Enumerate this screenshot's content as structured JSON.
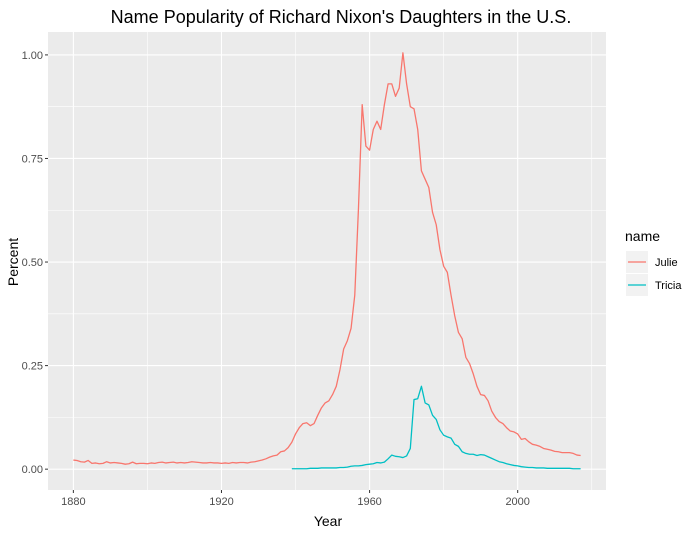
{
  "chart_data": {
    "type": "line",
    "title": "Name Popularity of Richard Nixon's Daughters in the U.S.",
    "xlabel": "Year",
    "ylabel": "Percent",
    "xlim": [
      1880,
      2017
    ],
    "ylim": [
      0,
      1.05
    ],
    "x_ticks": [
      "1880",
      "1920",
      "1960",
      "2000"
    ],
    "y_ticks": [
      "0.00",
      "0.25",
      "0.50",
      "0.75",
      "1.00"
    ],
    "grid": true,
    "legend": {
      "title": "name",
      "position": "right"
    },
    "series": [
      {
        "name": "Julie",
        "color": "#F8766D",
        "x": [
          1880,
          1881,
          1882,
          1883,
          1884,
          1885,
          1886,
          1887,
          1888,
          1889,
          1890,
          1891,
          1892,
          1893,
          1894,
          1895,
          1896,
          1897,
          1898,
          1899,
          1900,
          1901,
          1902,
          1903,
          1904,
          1905,
          1906,
          1907,
          1908,
          1909,
          1910,
          1911,
          1912,
          1913,
          1914,
          1915,
          1916,
          1917,
          1918,
          1919,
          1920,
          1921,
          1922,
          1923,
          1924,
          1925,
          1926,
          1927,
          1928,
          1929,
          1930,
          1931,
          1932,
          1933,
          1934,
          1935,
          1936,
          1937,
          1938,
          1939,
          1940,
          1941,
          1942,
          1943,
          1944,
          1945,
          1946,
          1947,
          1948,
          1949,
          1950,
          1951,
          1952,
          1953,
          1954,
          1955,
          1956,
          1957,
          1958,
          1959,
          1960,
          1961,
          1962,
          1963,
          1964,
          1965,
          1966,
          1967,
          1968,
          1969,
          1970,
          1971,
          1972,
          1973,
          1974,
          1975,
          1976,
          1977,
          1978,
          1979,
          1980,
          1981,
          1982,
          1983,
          1984,
          1985,
          1986,
          1987,
          1988,
          1989,
          1990,
          1991,
          1992,
          1993,
          1994,
          1995,
          1996,
          1997,
          1998,
          1999,
          2000,
          2001,
          2002,
          2003,
          2004,
          2005,
          2006,
          2007,
          2008,
          2009,
          2010,
          2011,
          2012,
          2013,
          2014,
          2015,
          2016,
          2017
        ],
        "values": [
          0.022,
          0.021,
          0.018,
          0.017,
          0.021,
          0.014,
          0.015,
          0.013,
          0.014,
          0.018,
          0.015,
          0.016,
          0.015,
          0.014,
          0.012,
          0.013,
          0.017,
          0.013,
          0.014,
          0.014,
          0.013,
          0.015,
          0.014,
          0.016,
          0.017,
          0.015,
          0.016,
          0.017,
          0.015,
          0.016,
          0.015,
          0.016,
          0.018,
          0.017,
          0.016,
          0.015,
          0.015,
          0.016,
          0.015,
          0.015,
          0.014,
          0.015,
          0.014,
          0.016,
          0.015,
          0.016,
          0.016,
          0.015,
          0.017,
          0.018,
          0.02,
          0.022,
          0.025,
          0.029,
          0.032,
          0.034,
          0.042,
          0.044,
          0.052,
          0.065,
          0.085,
          0.1,
          0.11,
          0.112,
          0.105,
          0.11,
          0.13,
          0.148,
          0.16,
          0.165,
          0.18,
          0.2,
          0.24,
          0.29,
          0.31,
          0.34,
          0.42,
          0.63,
          0.88,
          0.78,
          0.77,
          0.82,
          0.84,
          0.82,
          0.88,
          0.93,
          0.93,
          0.9,
          0.92,
          1.005,
          0.93,
          0.875,
          0.87,
          0.82,
          0.72,
          0.7,
          0.68,
          0.62,
          0.59,
          0.53,
          0.49,
          0.475,
          0.42,
          0.37,
          0.33,
          0.315,
          0.27,
          0.255,
          0.23,
          0.2,
          0.18,
          0.178,
          0.165,
          0.14,
          0.125,
          0.115,
          0.11,
          0.1,
          0.092,
          0.09,
          0.085,
          0.072,
          0.074,
          0.066,
          0.06,
          0.058,
          0.055,
          0.05,
          0.048,
          0.046,
          0.043,
          0.042,
          0.04,
          0.04,
          0.04,
          0.038,
          0.034,
          0.033
        ]
      },
      {
        "name": "Tricia",
        "color": "#00BFC4",
        "x": [
          1939,
          1940,
          1941,
          1942,
          1943,
          1944,
          1945,
          1946,
          1947,
          1948,
          1949,
          1950,
          1951,
          1952,
          1953,
          1954,
          1955,
          1956,
          1957,
          1958,
          1959,
          1960,
          1961,
          1962,
          1963,
          1964,
          1965,
          1966,
          1967,
          1968,
          1969,
          1970,
          1971,
          1972,
          1973,
          1974,
          1975,
          1976,
          1977,
          1978,
          1979,
          1980,
          1981,
          1982,
          1983,
          1984,
          1985,
          1986,
          1987,
          1988,
          1989,
          1990,
          1991,
          1992,
          1993,
          1994,
          1995,
          1996,
          1997,
          1998,
          1999,
          2000,
          2001,
          2002,
          2003,
          2004,
          2005,
          2006,
          2007,
          2008,
          2009,
          2010,
          2011,
          2012,
          2013,
          2014,
          2015,
          2016,
          2017
        ],
        "values": [
          0.001,
          0.001,
          0.001,
          0.001,
          0.001,
          0.002,
          0.002,
          0.002,
          0.003,
          0.003,
          0.003,
          0.003,
          0.003,
          0.004,
          0.004,
          0.005,
          0.007,
          0.008,
          0.008,
          0.009,
          0.011,
          0.012,
          0.013,
          0.016,
          0.015,
          0.017,
          0.025,
          0.034,
          0.031,
          0.03,
          0.028,
          0.032,
          0.05,
          0.168,
          0.17,
          0.2,
          0.16,
          0.155,
          0.13,
          0.12,
          0.095,
          0.082,
          0.078,
          0.075,
          0.06,
          0.055,
          0.042,
          0.038,
          0.036,
          0.036,
          0.033,
          0.035,
          0.034,
          0.03,
          0.026,
          0.022,
          0.018,
          0.016,
          0.013,
          0.011,
          0.009,
          0.008,
          0.006,
          0.005,
          0.004,
          0.004,
          0.003,
          0.003,
          0.003,
          0.002,
          0.002,
          0.002,
          0.002,
          0.002,
          0.002,
          0.002,
          0.001,
          0.001,
          0.001
        ]
      }
    ]
  }
}
